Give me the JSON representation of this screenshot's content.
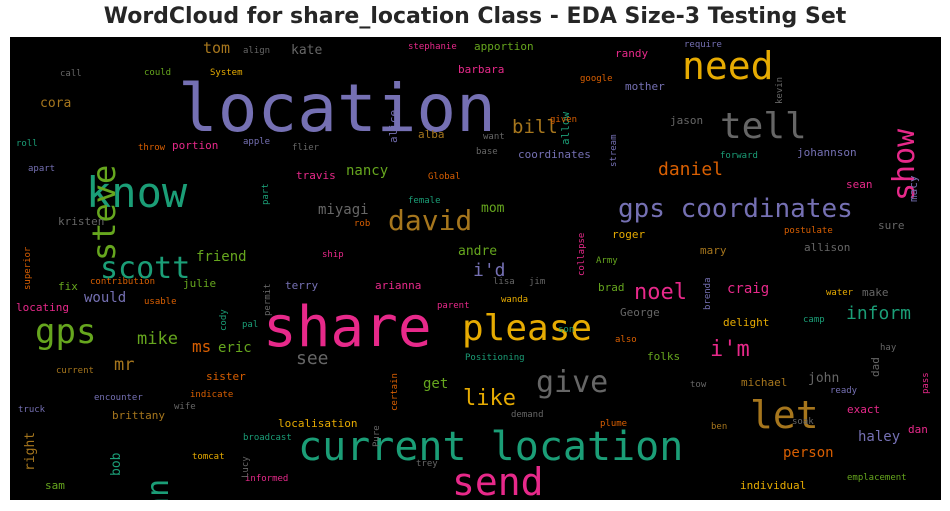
{
  "title": "WordCloud for share_location Class - EDA Size-3 Testing Set",
  "palette": {
    "purple": "#7570b3",
    "pink": "#e7298a",
    "green": "#1b9e77",
    "gold": "#e6ab02",
    "orange": "#d95f02",
    "lime": "#66a61e",
    "brown": "#a6761d",
    "gray": "#666666"
  },
  "words": [
    {
      "text": "location",
      "c": "purple"
    },
    {
      "text": "share",
      "c": "pink"
    },
    {
      "text": "current location",
      "c": "green"
    },
    {
      "text": "know",
      "c": "green"
    },
    {
      "text": "send",
      "c": "pink"
    },
    {
      "text": "please",
      "c": "gold"
    },
    {
      "text": "need",
      "c": "gold"
    },
    {
      "text": "tell",
      "c": "gray"
    },
    {
      "text": "let",
      "c": "brown"
    },
    {
      "text": "gps coordinates",
      "c": "purple"
    },
    {
      "text": "steve",
      "c": "lime"
    },
    {
      "text": "show",
      "c": "pink"
    },
    {
      "text": "gps",
      "c": "lime"
    },
    {
      "text": "david",
      "c": "brown"
    },
    {
      "text": "give",
      "c": "gray"
    },
    {
      "text": "scott",
      "c": "green"
    },
    {
      "text": "ann",
      "c": "green"
    },
    {
      "text": "like",
      "c": "gold"
    },
    {
      "text": "noel",
      "c": "pink"
    },
    {
      "text": "i'm",
      "c": "pink"
    },
    {
      "text": "bill",
      "c": "brown"
    },
    {
      "text": "daniel",
      "c": "orange"
    },
    {
      "text": "inform",
      "c": "green"
    },
    {
      "text": "i'd",
      "c": "purple"
    },
    {
      "text": "mike",
      "c": "lime"
    },
    {
      "text": "mr",
      "c": "brown"
    },
    {
      "text": "see",
      "c": "gray"
    },
    {
      "text": "haley",
      "c": "purple"
    },
    {
      "text": "eric",
      "c": "lime"
    },
    {
      "text": "ms",
      "c": "orange"
    },
    {
      "text": "person",
      "c": "orange"
    },
    {
      "text": "craig",
      "c": "pink"
    },
    {
      "text": "nancy",
      "c": "lime"
    },
    {
      "text": "miyagi",
      "c": "gray"
    },
    {
      "text": "friend",
      "c": "lime"
    },
    {
      "text": "mom",
      "c": "lime"
    },
    {
      "text": "andre",
      "c": "lime"
    },
    {
      "text": "get",
      "c": "lime"
    },
    {
      "text": "would",
      "c": "purple"
    },
    {
      "text": "tom",
      "c": "brown"
    },
    {
      "text": "kate",
      "c": "gray"
    },
    {
      "text": "cora",
      "c": "brown"
    },
    {
      "text": "right",
      "c": "brown"
    },
    {
      "text": "bob",
      "c": "green"
    },
    {
      "text": "john",
      "c": "gray"
    },
    {
      "text": "coordinates",
      "c": "purple"
    },
    {
      "text": "johannson",
      "c": "purple"
    },
    {
      "text": "jason",
      "c": "gray"
    },
    {
      "text": "mother",
      "c": "purple"
    },
    {
      "text": "randy",
      "c": "pink"
    },
    {
      "text": "apportion",
      "c": "lime"
    },
    {
      "text": "barbara",
      "c": "pink"
    },
    {
      "text": "alba",
      "c": "brown"
    },
    {
      "text": "alice",
      "c": "purple"
    },
    {
      "text": "allow",
      "c": "green"
    },
    {
      "text": "travis",
      "c": "pink"
    },
    {
      "text": "terry",
      "c": "purple"
    },
    {
      "text": "arianna",
      "c": "pink"
    },
    {
      "text": "julie",
      "c": "lime"
    },
    {
      "text": "kristen",
      "c": "gray"
    },
    {
      "text": "fix",
      "c": "lime"
    },
    {
      "text": "locating",
      "c": "pink"
    },
    {
      "text": "portion",
      "c": "pink"
    },
    {
      "text": "brad",
      "c": "lime"
    },
    {
      "text": "George",
      "c": "gray"
    },
    {
      "text": "folks",
      "c": "lime"
    },
    {
      "text": "michael",
      "c": "brown"
    },
    {
      "text": "exact",
      "c": "pink"
    },
    {
      "text": "dan",
      "c": "pink"
    },
    {
      "text": "sean",
      "c": "pink"
    },
    {
      "text": "macy",
      "c": "purple"
    },
    {
      "text": "allison",
      "c": "gray"
    },
    {
      "text": "sure",
      "c": "gray"
    },
    {
      "text": "mary",
      "c": "brown"
    },
    {
      "text": "roger",
      "c": "gold"
    },
    {
      "text": "make",
      "c": "gray"
    },
    {
      "text": "delight",
      "c": "gold"
    },
    {
      "text": "dad",
      "c": "gray"
    },
    {
      "text": "sister",
      "c": "orange"
    },
    {
      "text": "brittany",
      "c": "brown"
    },
    {
      "text": "localisation",
      "c": "gold"
    },
    {
      "text": "sam",
      "c": "lime"
    },
    {
      "text": "individual",
      "c": "gold"
    },
    {
      "text": "emplacement",
      "c": "lime"
    },
    {
      "text": "encounter",
      "c": "purple"
    },
    {
      "text": "tomcat",
      "c": "gold"
    },
    {
      "text": "broadcast",
      "c": "green"
    },
    {
      "text": "informed",
      "c": "pink"
    },
    {
      "text": "indicate",
      "c": "orange"
    },
    {
      "text": "wife",
      "c": "gray"
    },
    {
      "text": "Lucy",
      "c": "gray"
    },
    {
      "text": "trey",
      "c": "gray"
    },
    {
      "text": "demand",
      "c": "gray"
    },
    {
      "text": "plume",
      "c": "orange"
    },
    {
      "text": "ben",
      "c": "brown"
    },
    {
      "text": "soak",
      "c": "gray"
    },
    {
      "text": "ready",
      "c": "purple"
    },
    {
      "text": "tow",
      "c": "gray"
    },
    {
      "text": "hay",
      "c": "gray"
    },
    {
      "text": "pass",
      "c": "pink"
    },
    {
      "text": "camp",
      "c": "green"
    },
    {
      "text": "water",
      "c": "gold"
    },
    {
      "text": "also",
      "c": "orange"
    },
    {
      "text": "Positioning",
      "c": "green"
    },
    {
      "text": "son",
      "c": "green"
    },
    {
      "text": "parent",
      "c": "pink"
    },
    {
      "text": "wanda",
      "c": "gold"
    },
    {
      "text": "lisa",
      "c": "gray"
    },
    {
      "text": "jim",
      "c": "gray"
    },
    {
      "text": "Army",
      "c": "lime"
    },
    {
      "text": "brenda",
      "c": "purple"
    },
    {
      "text": "postulate",
      "c": "orange"
    },
    {
      "text": "rob",
      "c": "orange"
    },
    {
      "text": "female",
      "c": "green"
    },
    {
      "text": "collapse",
      "c": "pink"
    },
    {
      "text": "Global",
      "c": "orange"
    },
    {
      "text": "base",
      "c": "gray"
    },
    {
      "text": "want",
      "c": "gray"
    },
    {
      "text": "given",
      "c": "orange"
    },
    {
      "text": "stream",
      "c": "purple"
    },
    {
      "text": "forward",
      "c": "green"
    },
    {
      "text": "require",
      "c": "purple"
    },
    {
      "text": "google",
      "c": "orange"
    },
    {
      "text": "kevin",
      "c": "gray"
    },
    {
      "text": "stephanie",
      "c": "pink"
    },
    {
      "text": "align",
      "c": "gray"
    },
    {
      "text": "System",
      "c": "gold"
    },
    {
      "text": "could",
      "c": "lime"
    },
    {
      "text": "call",
      "c": "gray"
    },
    {
      "text": "roll",
      "c": "green"
    },
    {
      "text": "apart",
      "c": "purple"
    },
    {
      "text": "throw",
      "c": "orange"
    },
    {
      "text": "apple",
      "c": "purple"
    },
    {
      "text": "flier",
      "c": "gray"
    },
    {
      "text": "part",
      "c": "green"
    },
    {
      "text": "superior",
      "c": "orange"
    },
    {
      "text": "ship",
      "c": "pink"
    },
    {
      "text": "permit",
      "c": "gray"
    },
    {
      "text": "cody",
      "c": "green"
    },
    {
      "text": "pal",
      "c": "green"
    },
    {
      "text": "contribution",
      "c": "orange"
    },
    {
      "text": "usable",
      "c": "orange"
    },
    {
      "text": "current",
      "c": "brown"
    },
    {
      "text": "truck",
      "c": "purple"
    },
    {
      "text": "certain",
      "c": "orange"
    },
    {
      "text": "Pure",
      "c": "gray"
    }
  ]
}
